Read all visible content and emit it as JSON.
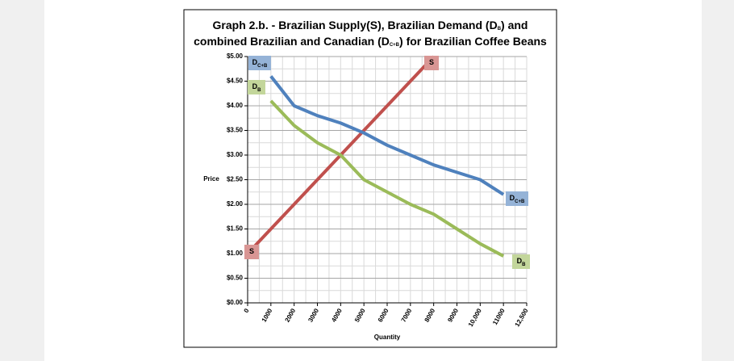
{
  "chart_data": {
    "type": "line",
    "title_line1": [
      "Graph 2.b. - Brazilian Supply(S), Brazilian Demand (D",
      "B",
      ") and"
    ],
    "title_line2": [
      "combined Brazilian and Canadian (D",
      "C+B",
      ")  for Brazilian Coffee Beans"
    ],
    "y_label": "Price",
    "x_label": "Quantity",
    "categories": [
      "0",
      "1000",
      "2000",
      "3000",
      "4000",
      "5000",
      "6000",
      "7000",
      "8000",
      "9000",
      "10,000",
      "11000",
      "12,500"
    ],
    "ylim": [
      0,
      5
    ],
    "yticks": [
      {
        "value": 0,
        "label": "$0.00"
      },
      {
        "value": 0.5,
        "label": "$0.50"
      },
      {
        "value": 1,
        "label": "$1.00"
      },
      {
        "value": 1.5,
        "label": "$1.50"
      },
      {
        "value": 2,
        "label": "$2.00"
      },
      {
        "value": 2.5,
        "label": "$2.50"
      },
      {
        "value": 3,
        "label": "$3.00"
      },
      {
        "value": 3.5,
        "label": "$3.50"
      },
      {
        "value": 4,
        "label": "$4.00"
      },
      {
        "value": 4.5,
        "label": "$4.50"
      },
      {
        "value": 5,
        "label": "$5.00"
      }
    ],
    "grid": true,
    "series": [
      {
        "name": "S",
        "subscript": "",
        "color": "#c0504d",
        "label_color": "#d99694",
        "values": [
          1.0,
          1.5,
          2.0,
          2.5,
          3.0,
          3.5,
          4.0,
          4.5,
          5.0,
          null,
          null,
          null,
          null
        ]
      },
      {
        "name": "D",
        "subscript": "C+B",
        "color": "#4f81bd",
        "label_color": "#95b3d7",
        "values": [
          null,
          4.6,
          4.0,
          3.8,
          3.65,
          3.45,
          3.2,
          3.0,
          2.8,
          2.65,
          2.5,
          2.2,
          null
        ]
      },
      {
        "name": "D",
        "subscript": "B",
        "color": "#9bbb59",
        "label_color": "#c3d69b",
        "values": [
          null,
          4.1,
          3.6,
          3.25,
          3.0,
          2.5,
          2.25,
          2.0,
          1.8,
          1.5,
          1.2,
          0.95,
          null
        ]
      }
    ]
  }
}
